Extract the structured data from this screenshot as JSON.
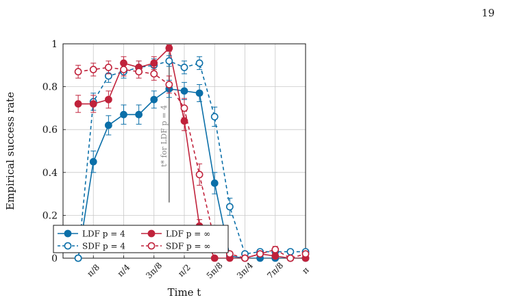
{
  "page_number": "19",
  "colors": {
    "blue": "#0b6fa8",
    "red": "#c0223b",
    "grid": "#c8c8c8",
    "annotation": "#888888"
  },
  "chart_data": {
    "type": "line",
    "xlabel": "Time t",
    "ylabel": "Empirical success rate",
    "xlim": [
      0.0,
      1.0
    ],
    "ylim": [
      0,
      1
    ],
    "xtick_values": [
      0.125,
      0.25,
      0.375,
      0.5,
      0.625,
      0.75,
      0.875,
      1.0
    ],
    "xtick_labels": [
      "π/8",
      "π/4",
      "3π/8",
      "π/2",
      "5π/8",
      "3π/4",
      "7π/8",
      "π"
    ],
    "ytick_values": [
      0,
      0.2,
      0.4,
      0.6,
      0.8,
      1
    ],
    "ytick_labels": [
      "0",
      "0.2",
      "0.4",
      "0.6",
      "0.8",
      "1"
    ],
    "grid": true,
    "legend_position": "bottom-left",
    "annotation": {
      "label": "t* for LDF p = 4",
      "x": 0.4375
    },
    "series": [
      {
        "name": "LDF p = 4",
        "color": "#0b6fa8",
        "style": "solid",
        "marker": "filled",
        "x": [
          0.0625,
          0.125,
          0.1875,
          0.25,
          0.3125,
          0.375,
          0.4375,
          0.5,
          0.5625,
          0.625,
          0.6875,
          0.75,
          0.8125,
          0.875,
          0.9375,
          1.0
        ],
        "y": [
          0.0,
          0.45,
          0.62,
          0.67,
          0.67,
          0.74,
          0.79,
          0.78,
          0.77,
          0.35,
          0.01,
          0.0,
          0.0,
          0.0,
          0.0,
          0.0
        ],
        "err": [
          0,
          0.05,
          0.045,
          0.045,
          0.045,
          0.04,
          0.04,
          0.04,
          0.04,
          0.05,
          0,
          0,
          0,
          0,
          0,
          0
        ]
      },
      {
        "name": "SDF p = 4",
        "color": "#0b6fa8",
        "style": "dashed",
        "marker": "open",
        "x": [
          0.0625,
          0.125,
          0.1875,
          0.25,
          0.3125,
          0.375,
          0.4375,
          0.5,
          0.5625,
          0.625,
          0.6875,
          0.75,
          0.8125,
          0.875,
          0.9375,
          1.0
        ],
        "y": [
          0.0,
          0.73,
          0.85,
          0.87,
          0.89,
          0.9,
          0.92,
          0.89,
          0.91,
          0.66,
          0.24,
          0.02,
          0.03,
          0.03,
          0.03,
          0.03
        ],
        "err": [
          0,
          0.04,
          0.03,
          0.03,
          0.03,
          0.03,
          0.025,
          0.03,
          0.03,
          0.045,
          0.04,
          0.01,
          0.01,
          0.01,
          0.01,
          0.01
        ]
      },
      {
        "name": "LDF p = ∞",
        "color": "#c0223b",
        "style": "solid",
        "marker": "filled",
        "x": [
          0.0625,
          0.125,
          0.1875,
          0.25,
          0.3125,
          0.375,
          0.4375,
          0.5,
          0.5625,
          0.625,
          0.6875,
          0.75,
          0.8125,
          0.875,
          0.9375,
          1.0
        ],
        "y": [
          0.72,
          0.72,
          0.74,
          0.91,
          0.89,
          0.91,
          0.98,
          0.64,
          0.15,
          0.0,
          0.0,
          0.0,
          0.02,
          0.01,
          0.0,
          0.0
        ],
        "err": [
          0.04,
          0.04,
          0.04,
          0.03,
          0.03,
          0.03,
          0.015,
          0.045,
          0.03,
          0,
          0,
          0,
          0.01,
          0.01,
          0,
          0
        ]
      },
      {
        "name": "SDF p = ∞",
        "color": "#c0223b",
        "style": "dashed",
        "marker": "open",
        "x": [
          0.0625,
          0.125,
          0.1875,
          0.25,
          0.3125,
          0.375,
          0.4375,
          0.5,
          0.5625,
          0.625,
          0.6875,
          0.75,
          0.8125,
          0.875,
          0.9375,
          1.0
        ],
        "y": [
          0.87,
          0.88,
          0.89,
          0.88,
          0.87,
          0.86,
          0.81,
          0.7,
          0.39,
          0.08,
          0.02,
          0.0,
          0.02,
          0.04,
          0.0,
          0.02
        ],
        "err": [
          0.03,
          0.03,
          0.03,
          0.03,
          0.03,
          0.03,
          0.04,
          0.045,
          0.05,
          0.03,
          0.01,
          0,
          0.01,
          0.015,
          0,
          0.01
        ]
      }
    ]
  }
}
